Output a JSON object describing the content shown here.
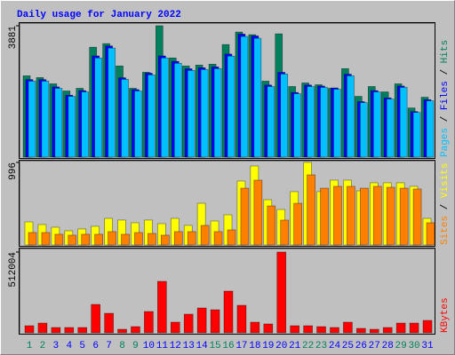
{
  "title": "Daily usage for January 2022",
  "categories": [
    "1",
    "2",
    "3",
    "4",
    "5",
    "6",
    "7",
    "8",
    "9",
    "10",
    "11",
    "12",
    "13",
    "14",
    "15",
    "16",
    "17",
    "18",
    "19",
    "20",
    "21",
    "22",
    "23",
    "24",
    "25",
    "26",
    "27",
    "28",
    "29",
    "30",
    "31"
  ],
  "category_colors": [
    "#00805c",
    "#00805c",
    "#0000ff",
    "#0000ff",
    "#0000ff",
    "#0000ff",
    "#0000ff",
    "#00805c",
    "#00805c",
    "#0000ff",
    "#0000ff",
    "#0000ff",
    "#0000ff",
    "#0000ff",
    "#00805c",
    "#00805c",
    "#0000ff",
    "#0000ff",
    "#0000ff",
    "#0000ff",
    "#0000ff",
    "#00805c",
    "#00805c",
    "#0000ff",
    "#0000ff",
    "#0000ff",
    "#0000ff",
    "#0000ff",
    "#00805c",
    "#00805c",
    "#0000ff"
  ],
  "legend_separator": " / ",
  "chart_data": [
    {
      "type": "bar",
      "ylim": [
        0,
        3881
      ],
      "yticks": [
        3881
      ],
      "series": [
        {
          "name": "Hits",
          "color": "#00805c",
          "values": [
            2402,
            2350,
            2165,
            1954,
            2033,
            3247,
            3353,
            2693,
            2033,
            2508,
            3881,
            2930,
            2693,
            2719,
            2746,
            3326,
            3696,
            3617,
            2244,
            3643,
            2086,
            2191,
            2138,
            2033,
            2614,
            1795,
            2086,
            1927,
            2165,
            1452,
            1769
          ]
        },
        {
          "name": "Files",
          "color": "#0000ff",
          "values": [
            2290,
            2290,
            2075,
            1830,
            1965,
            2990,
            3285,
            2345,
            1995,
            2480,
            2990,
            2830,
            2610,
            2640,
            2665,
            3045,
            3635,
            3580,
            2130,
            2505,
            1910,
            2130,
            2100,
            2045,
            2450,
            1640,
            1965,
            1750,
            2100,
            1345,
            1695
          ]
        },
        {
          "name": "Pages",
          "color": "#00c0ff",
          "values": [
            2244,
            2244,
            2033,
            1795,
            1927,
            2930,
            3221,
            2297,
            1954,
            2429,
            2930,
            2772,
            2561,
            2587,
            2614,
            2983,
            3564,
            3511,
            2086,
            2455,
            1874,
            2086,
            2059,
            2006,
            2402,
            1610,
            1927,
            1716,
            2059,
            1320,
            1663
          ]
        }
      ]
    },
    {
      "type": "bar",
      "ylim": [
        0,
        996
      ],
      "yticks": [
        996
      ],
      "series": [
        {
          "name": "Visits",
          "color": "#ffff00",
          "values": [
            278,
            246,
            214,
            171,
            193,
            225,
            321,
            300,
            268,
            300,
            257,
            321,
            236,
            503,
            289,
            364,
            771,
            953,
            546,
            428,
            643,
            996,
            643,
            782,
            782,
            653,
            750,
            750,
            750,
            707,
            321
          ]
        },
        {
          "name": "Sites",
          "color": "#ff8000",
          "values": [
            150,
            150,
            129,
            118,
            129,
            129,
            161,
            129,
            150,
            139,
            118,
            161,
            161,
            236,
            161,
            182,
            685,
            782,
            471,
            300,
            503,
            846,
            685,
            707,
            707,
            685,
            707,
            696,
            685,
            675,
            268
          ]
        }
      ]
    },
    {
      "type": "bar",
      "ylim": [
        0,
        512004
      ],
      "yticks": [
        512004
      ],
      "series": [
        {
          "name": "KBytes",
          "color": "#ff0000",
          "values": [
            45008,
            61886,
            33756,
            33756,
            33756,
            180032,
            123772,
            22504,
            39382,
            135024,
            326308,
            67512,
            118146,
            157528,
            146276,
            264422,
            174406,
            67512,
            56260,
            512004,
            45008,
            45008,
            39382,
            33756,
            67512,
            28130,
            22504,
            33756,
            61886,
            61886,
            78764
          ]
        }
      ]
    }
  ]
}
